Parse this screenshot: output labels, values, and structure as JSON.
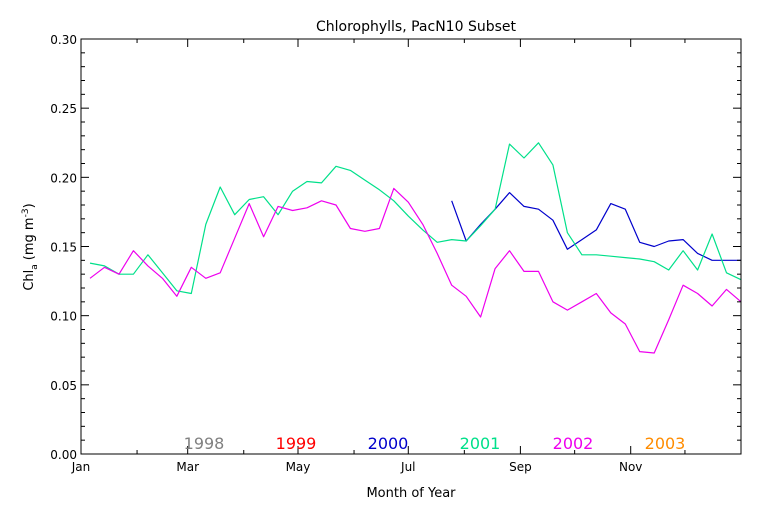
{
  "chart_data": {
    "type": "line",
    "title": "Chlorophylls, PacN10 Subset",
    "xlabel": "Month of Year",
    "ylabel": {
      "main": "Chl",
      "sub": "a",
      "unit": "(mg m",
      "sup": "-3",
      "close": ")"
    },
    "xlim": [
      0,
      365
    ],
    "ylim": [
      0,
      0.3
    ],
    "x_ticks": [
      {
        "day": 0,
        "label": "Jan"
      },
      {
        "day": 59,
        "label": "Mar"
      },
      {
        "day": 120,
        "label": "May"
      },
      {
        "day": 181,
        "label": "Jul"
      },
      {
        "day": 243,
        "label": "Sep"
      },
      {
        "day": 304,
        "label": "Nov"
      }
    ],
    "x_minor_ticks": [
      31,
      90,
      151,
      212,
      273,
      334
    ],
    "y_ticks": [
      {
        "value": 0.0,
        "label": "0.00"
      },
      {
        "value": 0.05,
        "label": "0.05"
      },
      {
        "value": 0.1,
        "label": "0.10"
      },
      {
        "value": 0.15,
        "label": "0.15"
      },
      {
        "value": 0.2,
        "label": "0.20"
      },
      {
        "value": 0.25,
        "label": "0.25"
      },
      {
        "value": 0.3,
        "label": "0.30"
      }
    ],
    "legend": [
      {
        "name": "1998",
        "color": "#808080"
      },
      {
        "name": "1999",
        "color": "#ff0000"
      },
      {
        "name": "2000",
        "color": "#0000cc"
      },
      {
        "name": "2001",
        "color": "#00e08a"
      },
      {
        "name": "2002",
        "color": "#ee00ee"
      },
      {
        "name": "2003",
        "color": "#ff8c00"
      }
    ],
    "legend_placement": "bottom inside plot",
    "series": [
      {
        "name": "2000",
        "color": "#0000cc",
        "x": [
          205,
          213,
          221,
          229,
          237,
          245,
          253,
          261,
          269,
          277,
          285,
          293,
          301,
          309,
          317,
          325,
          333,
          341,
          349,
          357,
          365
        ],
        "y": [
          0.183,
          0.154,
          0.166,
          0.177,
          0.189,
          0.179,
          0.177,
          0.169,
          0.148,
          0.155,
          0.162,
          0.181,
          0.177,
          0.153,
          0.15,
          0.154,
          0.155,
          0.145,
          0.14,
          0.14,
          0.14
        ]
      },
      {
        "name": "2001",
        "color": "#00e08a",
        "x": [
          5,
          13,
          21,
          29,
          37,
          45,
          53,
          61,
          69,
          77,
          85,
          93,
          101,
          109,
          117,
          125,
          133,
          141,
          149,
          157,
          165,
          173,
          181,
          189,
          197,
          205,
          213,
          221,
          229,
          237,
          245,
          253,
          261,
          269,
          277,
          285,
          293,
          301,
          309,
          317,
          325,
          333,
          341,
          349,
          357,
          365
        ],
        "y": [
          0.138,
          0.136,
          0.13,
          0.13,
          0.144,
          0.131,
          0.118,
          0.116,
          0.166,
          0.193,
          0.173,
          0.184,
          0.186,
          0.173,
          0.19,
          0.197,
          0.196,
          0.208,
          0.205,
          0.198,
          0.191,
          0.183,
          0.172,
          0.162,
          0.153,
          0.155,
          0.154,
          0.165,
          0.177,
          0.224,
          0.214,
          0.225,
          0.209,
          0.16,
          0.144,
          0.144,
          0.143,
          0.142,
          0.141,
          0.139,
          0.133,
          0.147,
          0.133,
          0.159,
          0.131,
          0.126
        ]
      },
      {
        "name": "2002",
        "color": "#ee00ee",
        "x": [
          5,
          13,
          21,
          29,
          37,
          45,
          53,
          61,
          69,
          77,
          85,
          93,
          101,
          109,
          117,
          125,
          133,
          141,
          149,
          157,
          165,
          173,
          181,
          189,
          197,
          205,
          213,
          221,
          229,
          237,
          245,
          253,
          261,
          269,
          277,
          285,
          293,
          301,
          309,
          317,
          325,
          333,
          341,
          349,
          357,
          365
        ],
        "y": [
          0.127,
          0.135,
          0.13,
          0.147,
          0.136,
          0.127,
          0.114,
          0.135,
          0.127,
          0.131,
          0.156,
          0.181,
          0.157,
          0.179,
          0.176,
          0.178,
          0.183,
          0.18,
          0.163,
          0.161,
          0.163,
          0.192,
          0.182,
          0.166,
          0.145,
          0.122,
          0.114,
          0.099,
          0.134,
          0.147,
          0.132,
          0.132,
          0.11,
          0.104,
          0.11,
          0.116,
          0.102,
          0.094,
          0.074,
          0.073,
          0.097,
          0.122,
          0.116,
          0.107,
          0.119,
          0.11
        ]
      }
    ]
  }
}
